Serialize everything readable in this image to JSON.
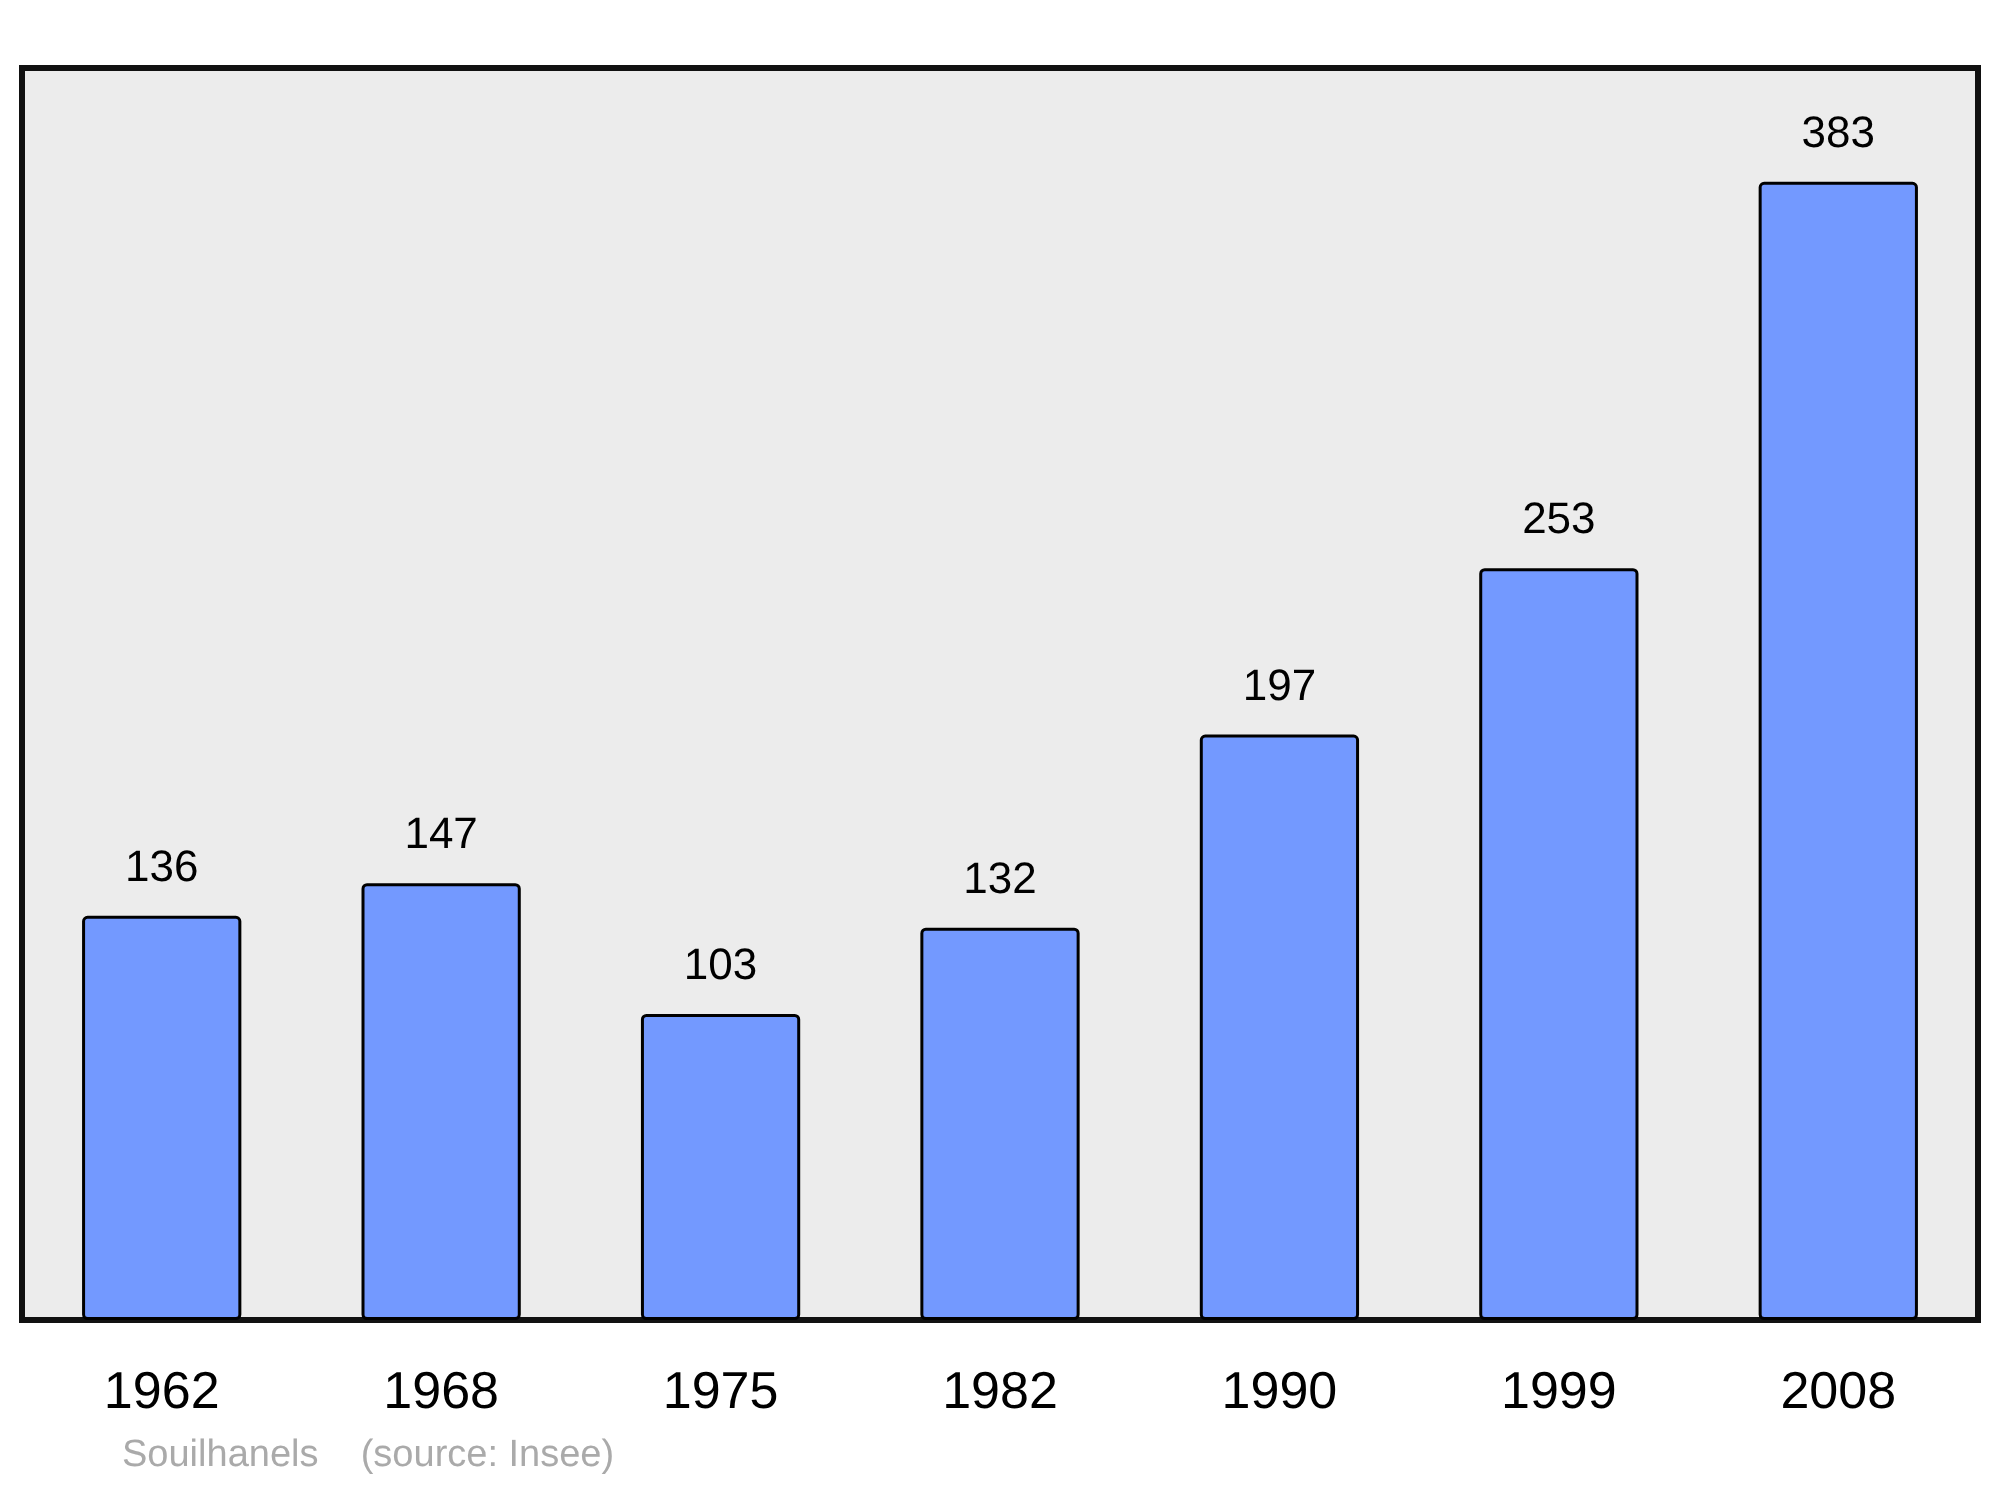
{
  "chart_data": {
    "type": "bar",
    "categories": [
      "1962",
      "1968",
      "1975",
      "1982",
      "1990",
      "1999",
      "2008"
    ],
    "values": [
      136,
      147,
      103,
      132,
      197,
      253,
      383
    ],
    "color": "#7399ff",
    "data_labels": true,
    "annotations": [
      "Souilhanels    (source: Insee)"
    ]
  }
}
